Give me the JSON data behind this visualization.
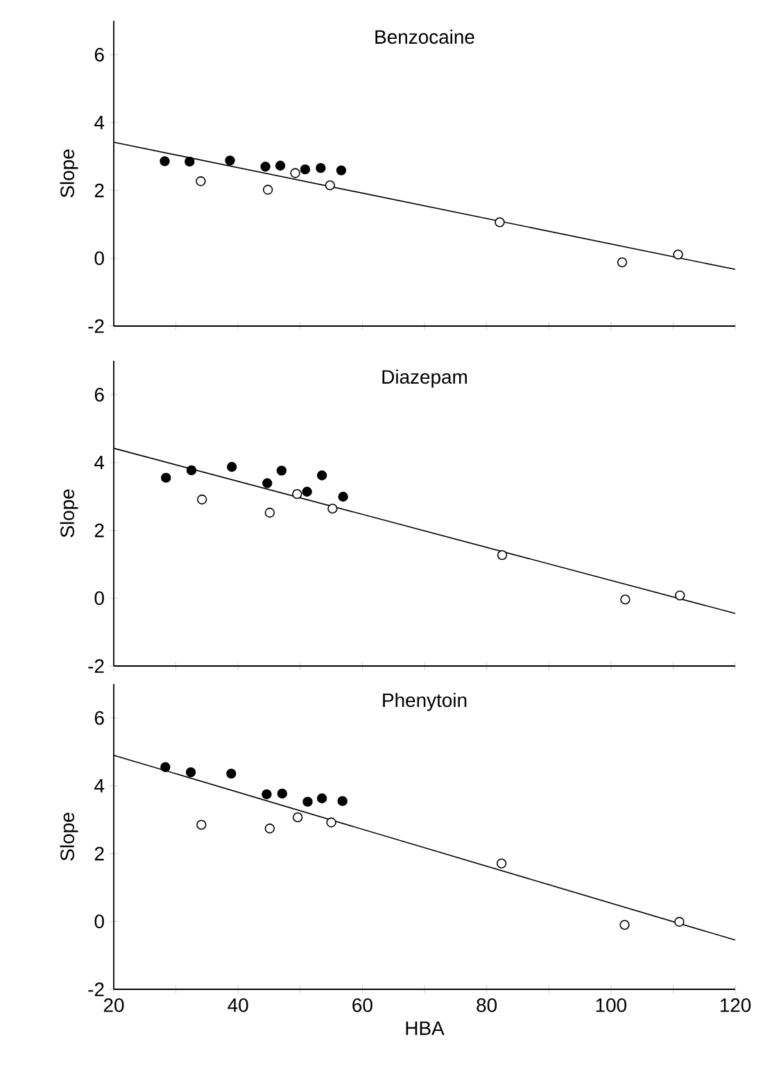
{
  "chart_data": [
    {
      "type": "scatter",
      "title": "Benzocaine",
      "ylabel": "Slope",
      "xlim": [
        20,
        120
      ],
      "ylim": [
        -2,
        7
      ],
      "tick_labels": "y",
      "xticks": [
        20,
        {
          "value": 30,
          "label": null
        },
        40,
        {
          "value": 50,
          "label": null
        },
        60,
        {
          "value": 70,
          "label": null
        },
        80,
        {
          "value": 90,
          "label": null
        },
        100,
        {
          "value": 110,
          "label": null
        },
        120
      ],
      "yticks": [
        -2,
        0,
        2,
        4,
        6
      ],
      "series": [
        {
          "color": "#000000",
          "marker": "circle",
          "x": [
            28.2,
            32.2,
            38.7,
            44.4,
            46.8,
            50.8,
            53.3,
            56.6
          ],
          "values": [
            2.86,
            2.85,
            2.88,
            2.7,
            2.73,
            2.62,
            2.66,
            2.59
          ]
        },
        {
          "color": "#ffffff",
          "marker": "circle",
          "x": [
            34.0,
            44.8,
            49.2,
            54.8,
            82.1,
            101.8,
            110.8
          ],
          "values": [
            2.27,
            2.02,
            2.51,
            2.15,
            1.06,
            -0.12,
            0.11
          ]
        },
        {
          "type": "line",
          "marker": "none",
          "color": "#000000",
          "x": [
            20,
            120
          ],
          "values": [
            3.42,
            -0.33
          ]
        }
      ]
    },
    {
      "type": "scatter",
      "title": "Diazepam",
      "ylabel": "Slope",
      "xlim": [
        20,
        120
      ],
      "ylim": [
        -2,
        7
      ],
      "tick_labels": "y",
      "xticks": [
        20,
        {
          "value": 30,
          "label": null
        },
        40,
        {
          "value": 50,
          "label": null
        },
        60,
        {
          "value": 70,
          "label": null
        },
        80,
        {
          "value": 90,
          "label": null
        },
        100,
        {
          "value": 110,
          "label": null
        },
        120
      ],
      "yticks": [
        -2,
        0,
        2,
        4,
        6
      ],
      "series": [
        {
          "color": "#000000",
          "marker": "circle",
          "x": [
            28.4,
            32.5,
            39.0,
            44.7,
            47.0,
            53.5,
            51.1,
            56.9
          ],
          "values": [
            3.55,
            3.77,
            3.87,
            3.39,
            3.76,
            3.62,
            3.14,
            2.99
          ]
        },
        {
          "color": "#ffffff",
          "marker": "circle",
          "x": [
            34.2,
            45.1,
            49.5,
            55.2,
            82.5,
            102.3,
            111.1
          ],
          "values": [
            2.91,
            2.52,
            3.07,
            2.64,
            1.27,
            -0.04,
            0.08
          ]
        },
        {
          "type": "line",
          "marker": "none",
          "color": "#000000",
          "x": [
            20,
            120
          ],
          "values": [
            4.42,
            -0.45
          ]
        }
      ]
    },
    {
      "type": "scatter",
      "title": "Phenytoin",
      "xlabel": "HBA",
      "ylabel": "Slope",
      "xlim": [
        20,
        120
      ],
      "ylim": [
        -2,
        7
      ],
      "xticks": [
        20,
        {
          "value": 30,
          "label": null
        },
        40,
        {
          "value": 50,
          "label": null
        },
        60,
        {
          "value": 70,
          "label": null
        },
        80,
        {
          "value": 90,
          "label": null
        },
        100,
        {
          "value": 110,
          "label": null
        },
        120
      ],
      "yticks": [
        -2,
        0,
        2,
        4,
        6
      ],
      "series": [
        {
          "color": "#000000",
          "marker": "circle",
          "x": [
            28.3,
            32.4,
            38.9,
            44.6,
            47.1,
            53.5,
            51.2,
            56.8
          ],
          "values": [
            4.55,
            4.4,
            4.36,
            3.75,
            3.77,
            3.63,
            3.53,
            3.55
          ]
        },
        {
          "color": "#ffffff",
          "marker": "circle",
          "x": [
            34.1,
            45.1,
            49.6,
            55.0,
            82.4,
            102.2,
            111.0
          ],
          "values": [
            2.85,
            2.74,
            3.07,
            2.92,
            1.71,
            -0.1,
            -0.01
          ]
        },
        {
          "type": "line",
          "marker": "none",
          "color": "#000000",
          "x": [
            20,
            120
          ],
          "values": [
            4.9,
            -0.55
          ]
        }
      ]
    }
  ]
}
